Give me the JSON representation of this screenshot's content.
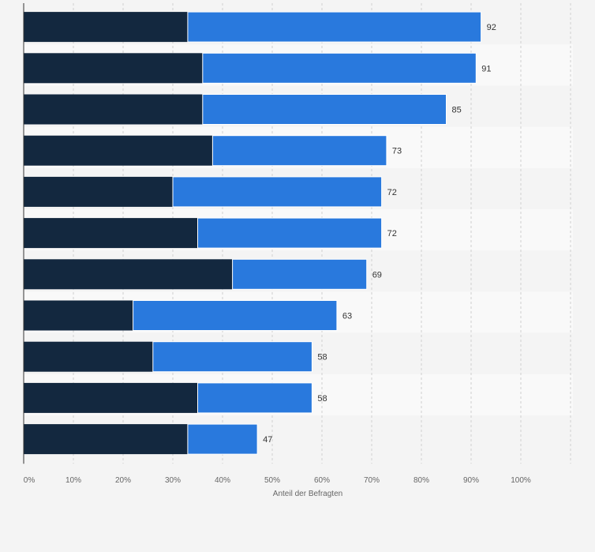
{
  "chart_data": {
    "type": "bar",
    "orientation": "horizontal",
    "stacked": true,
    "categories": [
      "",
      "",
      "",
      "",
      "",
      "",
      "",
      "",
      "",
      "",
      ""
    ],
    "series": [
      {
        "values": [
          33,
          36,
          36,
          38,
          30,
          35,
          42,
          22,
          26,
          35,
          33
        ]
      },
      {
        "values": [
          59,
          55,
          49,
          35,
          42,
          37,
          27,
          41,
          32,
          23,
          14
        ]
      }
    ],
    "totals": [
      92,
      91,
      85,
      73,
      72,
      72,
      69,
      63,
      58,
      58,
      47
    ],
    "xlabel": "Anteil der Befragten",
    "ylabel": "",
    "xlim": [
      0,
      100
    ],
    "x_ticks": [
      "0%",
      "10%",
      "20%",
      "30%",
      "40%",
      "50%",
      "60%",
      "70%",
      "80%",
      "90%",
      "100%"
    ],
    "grid": true,
    "legend": "none"
  },
  "colors": {
    "series_dark": "#13283f",
    "series_blue": "#2979dd",
    "plot_band_a": "#f9f9f9",
    "plot_band_b": "#f4f4f4",
    "grid": "#d0d0d0"
  }
}
